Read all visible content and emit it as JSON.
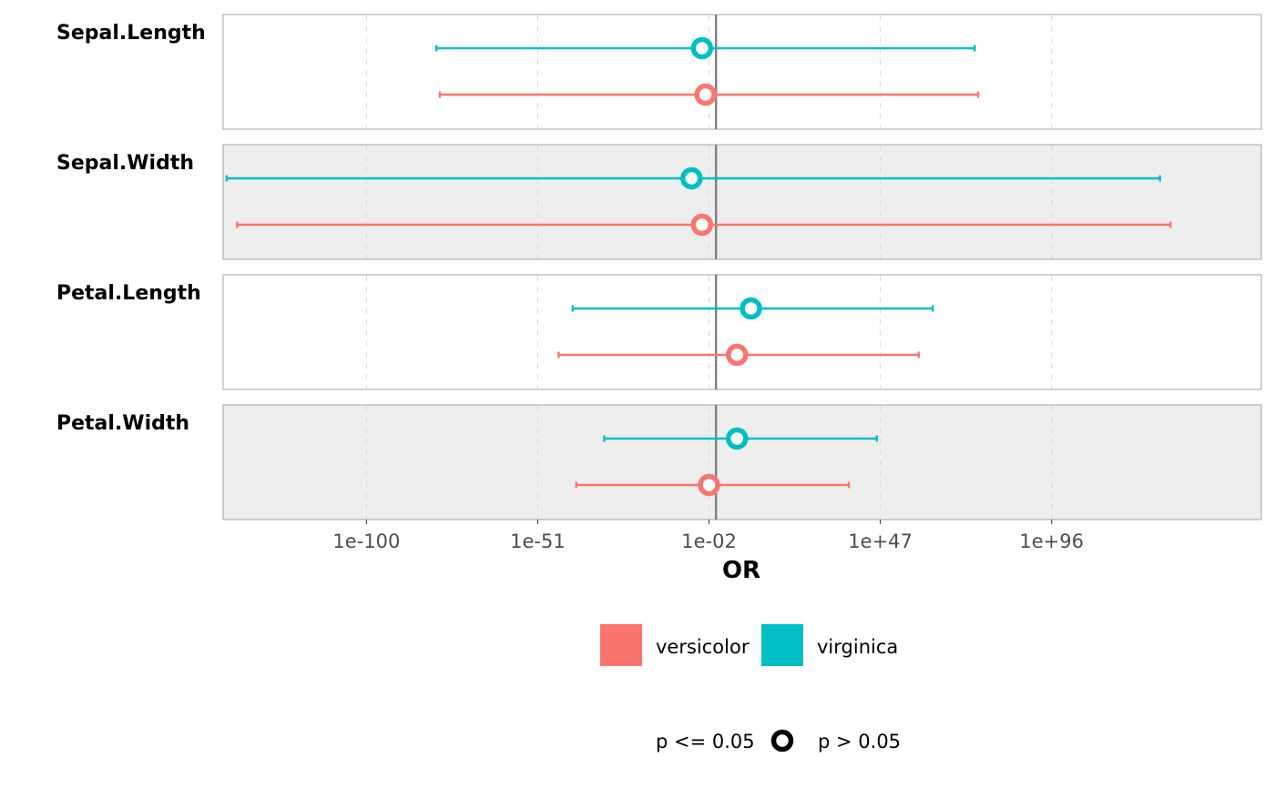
{
  "chart_data": {
    "type": "forest",
    "xlabel": "OR",
    "x_scale": "log10",
    "reference_line": 1,
    "xlim_log10": [
      -141,
      156
    ],
    "x_ticks": [
      {
        "log10": -100,
        "label": "1e-100"
      },
      {
        "log10": -51,
        "label": "1e-51"
      },
      {
        "log10": -2,
        "label": "1e-02"
      },
      {
        "log10": 47,
        "label": "1e+47"
      },
      {
        "log10": 96,
        "label": "1e+96"
      }
    ],
    "grid": "vertical-dashed",
    "panels": [
      {
        "label": "Sepal.Length",
        "shaded": false,
        "estimates": [
          {
            "series": "virginica",
            "or_log10": -4,
            "lower_log10": -80,
            "upper_log10": 74,
            "p_gt_005": true
          },
          {
            "series": "versicolor",
            "or_log10": -3,
            "lower_log10": -79,
            "upper_log10": 75,
            "p_gt_005": true
          }
        ]
      },
      {
        "label": "Sepal.Width",
        "shaded": true,
        "estimates": [
          {
            "series": "virginica",
            "or_log10": -7,
            "lower_log10": -140,
            "upper_log10": 127,
            "p_gt_005": true
          },
          {
            "series": "versicolor",
            "or_log10": -4,
            "lower_log10": -137,
            "upper_log10": 130,
            "p_gt_005": true
          }
        ]
      },
      {
        "label": "Petal.Length",
        "shaded": false,
        "estimates": [
          {
            "series": "virginica",
            "or_log10": 10,
            "lower_log10": -41,
            "upper_log10": 62,
            "p_gt_005": true
          },
          {
            "series": "versicolor",
            "or_log10": 6,
            "lower_log10": -45,
            "upper_log10": 58,
            "p_gt_005": true
          }
        ]
      },
      {
        "label": "Petal.Width",
        "shaded": true,
        "estimates": [
          {
            "series": "virginica",
            "or_log10": 6,
            "lower_log10": -32,
            "upper_log10": 46,
            "p_gt_005": true
          },
          {
            "series": "versicolor",
            "or_log10": -2,
            "lower_log10": -40,
            "upper_log10": 38,
            "p_gt_005": true
          }
        ]
      }
    ],
    "legend": {
      "placement": "bottom",
      "series": [
        {
          "name": "versicolor",
          "color": "#F8766D"
        },
        {
          "name": "virginica",
          "color": "#00BFC4"
        }
      ],
      "shapes": [
        {
          "label": "p <= 0.05",
          "shape": "filled-circle"
        },
        {
          "label": "p > 0.05",
          "shape": "hollow-circle"
        }
      ]
    }
  }
}
